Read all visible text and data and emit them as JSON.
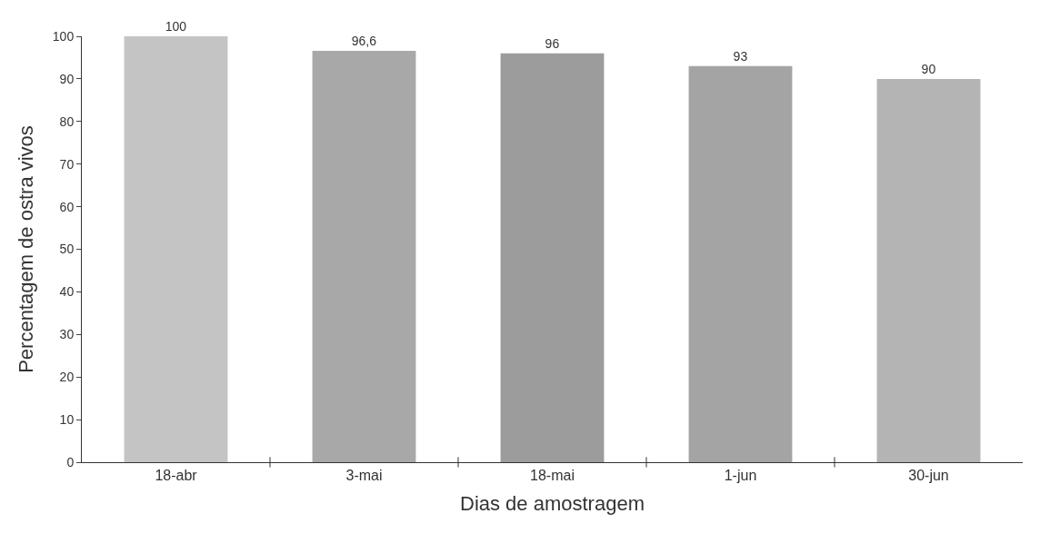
{
  "chart_data": {
    "type": "bar",
    "xlabel": "Dias de amostragem",
    "ylabel": "Percentagem de ostra vivos",
    "categories": [
      "18-abr",
      "3-mai",
      "18-mai",
      "1-jun",
      "30-jun"
    ],
    "values": [
      100,
      96.6,
      96,
      93,
      90
    ],
    "value_labels": [
      "100",
      "96,6",
      "96",
      "93",
      "90"
    ],
    "colors": [
      "#c4c4c4",
      "#a8a8a8",
      "#9c9c9c",
      "#a4a4a4",
      "#b4b4b4"
    ],
    "ylim": [
      0,
      100
    ],
    "yticks": [
      0,
      10,
      20,
      30,
      40,
      50,
      60,
      70,
      80,
      90,
      100
    ]
  }
}
